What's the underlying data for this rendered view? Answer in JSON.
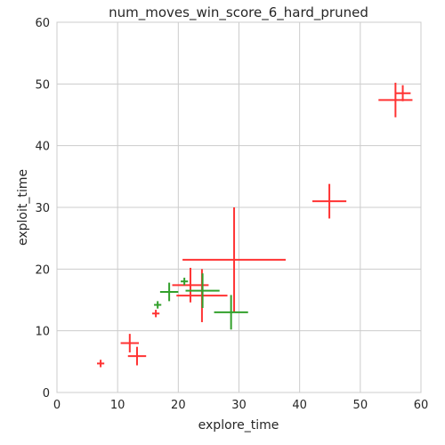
{
  "chart_data": {
    "type": "scatter",
    "title": "num_moves_win_score_6_hard_pruned",
    "xlabel": "explore_time",
    "ylabel": "exploit_time",
    "xlim": [
      0,
      60
    ],
    "ylim": [
      0,
      60
    ],
    "xticks": [
      0,
      10,
      20,
      30,
      40,
      50,
      60
    ],
    "yticks": [
      0,
      10,
      20,
      30,
      40,
      50,
      60
    ],
    "xtick_labels": [
      "0",
      "10",
      "20",
      "30",
      "40",
      "50",
      "60"
    ],
    "ytick_labels": [
      "0",
      "10",
      "20",
      "30",
      "40",
      "50",
      "60"
    ],
    "grid": true,
    "error_bars": true,
    "series": [
      {
        "color": "#ff3333",
        "points": [
          {
            "x": 7.2,
            "y": 4.7,
            "xerr": 0.6,
            "yerr": 0.6
          },
          {
            "x": 12.0,
            "y": 8.0,
            "xerr": 1.5,
            "yerr": 1.5
          },
          {
            "x": 13.2,
            "y": 5.9,
            "xerr": 1.5,
            "yerr": 1.5
          },
          {
            "x": 16.3,
            "y": 12.8,
            "xerr": 0.6,
            "yerr": 0.6
          },
          {
            "x": 22.0,
            "y": 17.4,
            "xerr": 3.0,
            "yerr": 2.8
          },
          {
            "x": 23.9,
            "y": 15.7,
            "xerr": 4.2,
            "yerr": 4.3
          },
          {
            "x": 29.2,
            "y": 21.5,
            "xerr": 8.5,
            "yerr": 8.5
          },
          {
            "x": 44.9,
            "y": 31.0,
            "xerr": 2.8,
            "yerr": 2.8
          },
          {
            "x": 55.8,
            "y": 47.4,
            "xerr": 2.8,
            "yerr": 2.8
          },
          {
            "x": 57.0,
            "y": 48.5,
            "xerr": 1.3,
            "yerr": 1.3
          }
        ]
      },
      {
        "color": "#33a02c",
        "points": [
          {
            "x": 16.6,
            "y": 14.2,
            "xerr": 0.6,
            "yerr": 0.6
          },
          {
            "x": 18.5,
            "y": 16.3,
            "xerr": 1.5,
            "yerr": 1.5
          },
          {
            "x": 21.0,
            "y": 18.0,
            "xerr": 0.6,
            "yerr": 0.6
          },
          {
            "x": 24.0,
            "y": 16.5,
            "xerr": 2.8,
            "yerr": 2.8
          },
          {
            "x": 28.7,
            "y": 13.0,
            "xerr": 2.8,
            "yerr": 2.8
          }
        ]
      }
    ]
  }
}
